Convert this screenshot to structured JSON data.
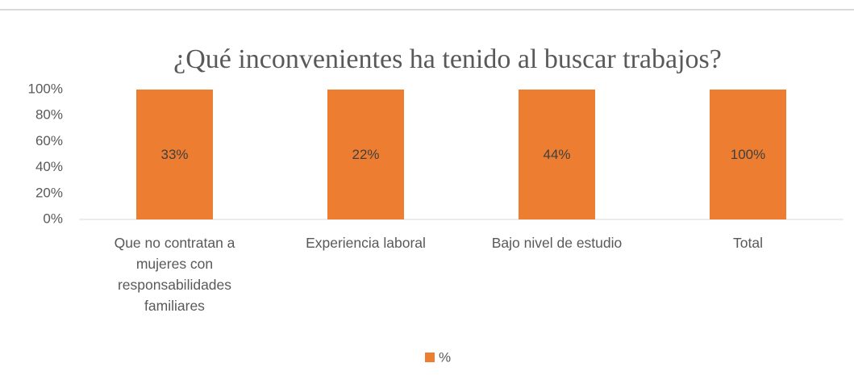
{
  "chart_data": {
    "type": "bar",
    "stacking": "percent",
    "title": "¿Qué inconvenientes ha tenido al buscar trabajos?",
    "categories": [
      "Que no contratan a mujeres con responsabilidades familiares",
      "Experiencia laboral",
      "Bajo nivel de estudio",
      "Total"
    ],
    "series": [
      {
        "name": "%",
        "color": "#ed7d31",
        "values": [
          33,
          22,
          44,
          100
        ],
        "value_labels": [
          "33%",
          "22%",
          "44%",
          "100%"
        ]
      }
    ],
    "ylim": [
      0,
      100
    ],
    "yticks": [
      {
        "value": 0,
        "label": "0%"
      },
      {
        "value": 20,
        "label": "20%"
      },
      {
        "value": 40,
        "label": "40%"
      },
      {
        "value": 60,
        "label": "60%"
      },
      {
        "value": 80,
        "label": "80%"
      },
      {
        "value": 100,
        "label": "100%"
      }
    ],
    "grid": false,
    "legend": "bottom"
  }
}
